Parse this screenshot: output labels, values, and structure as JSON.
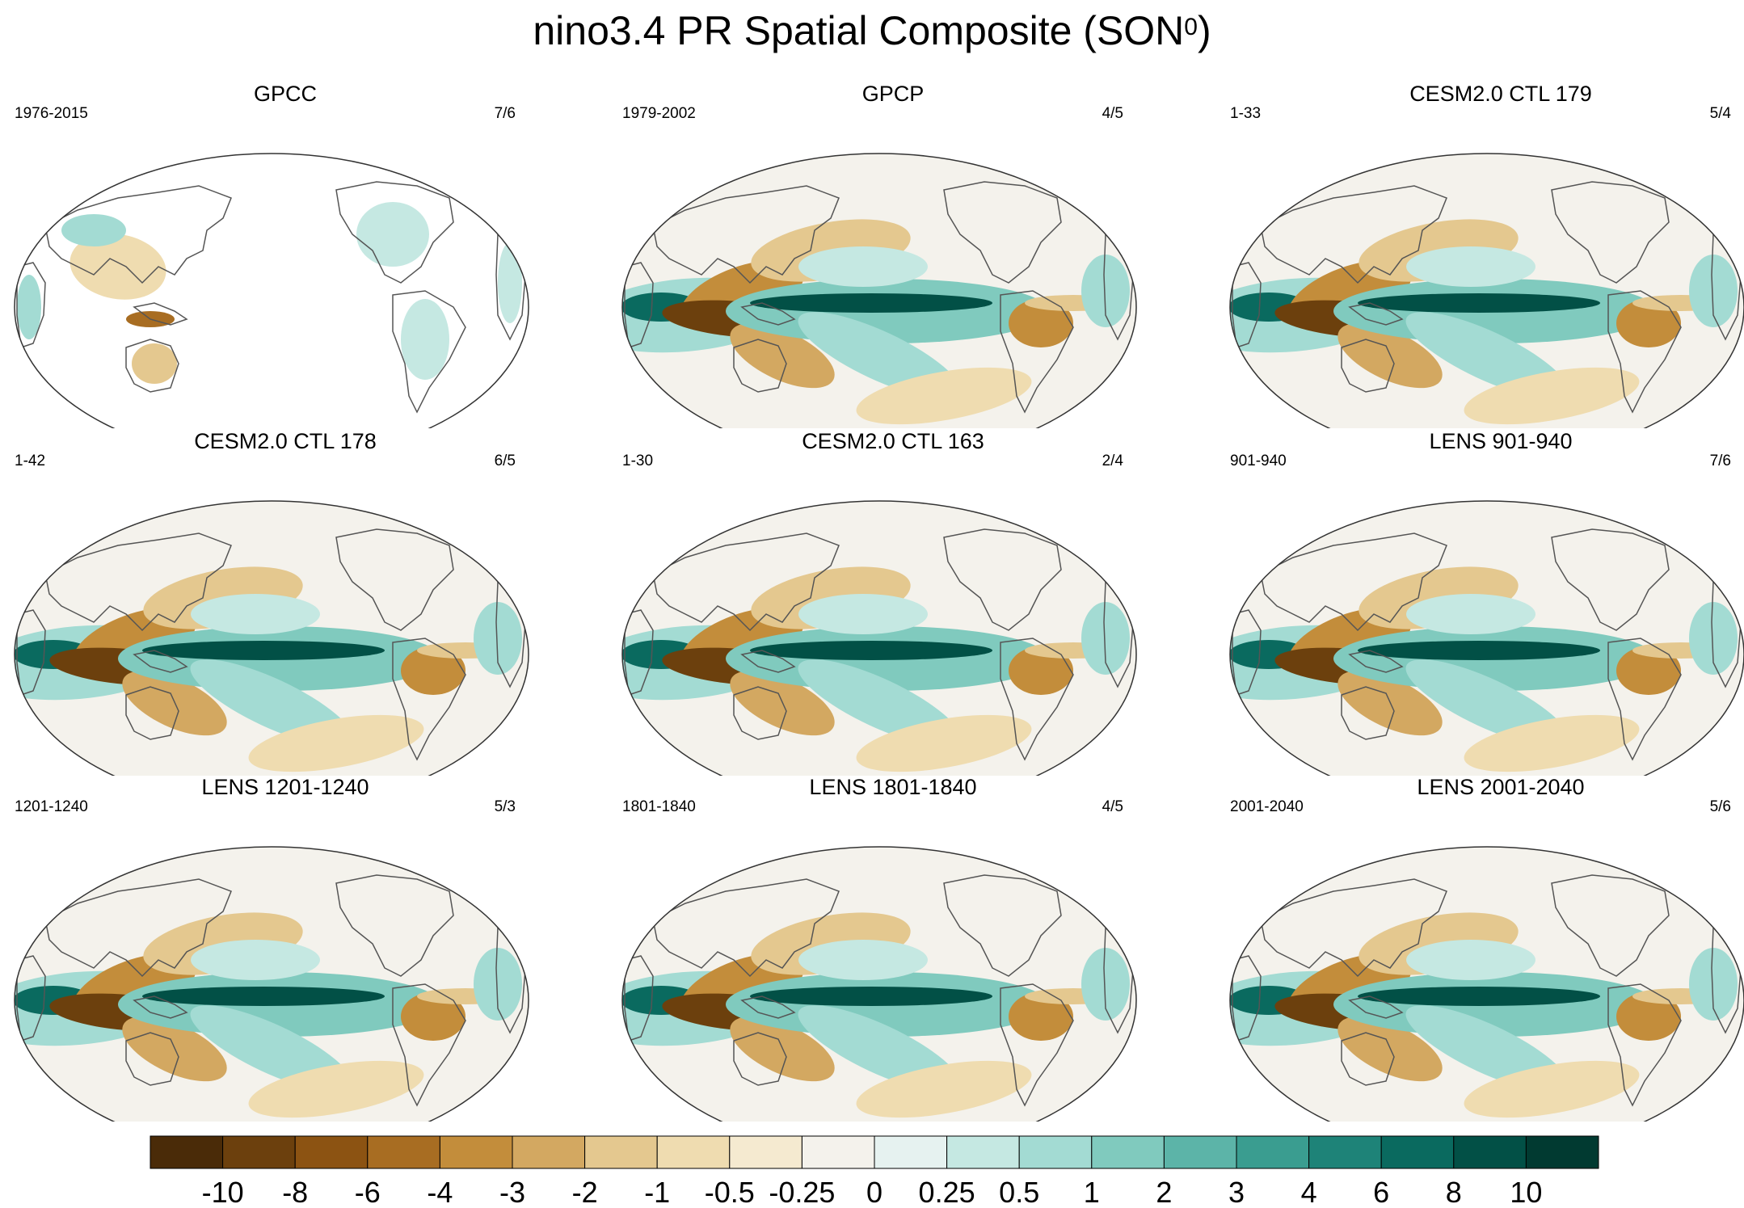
{
  "title": {
    "text": "nino3.4 PR Spatial Composite (SON",
    "sup": "0",
    "close": ")"
  },
  "chart_data": {
    "type": "heatmap",
    "projection": "Robinson (Pacific-centered)",
    "panels": [
      {
        "title": "GPCC",
        "years": "1976-2015",
        "ratio": "7/6",
        "land_only": true
      },
      {
        "title": "GPCP",
        "years": "1979-2002",
        "ratio": "4/5",
        "land_only": false
      },
      {
        "title": "CESM2.0 CTL 179",
        "years": "1-33",
        "ratio": "5/4",
        "land_only": false
      },
      {
        "title": "CESM2.0 CTL 178",
        "years": "1-42",
        "ratio": "6/5",
        "land_only": false
      },
      {
        "title": "CESM2.0 CTL 163",
        "years": "1-30",
        "ratio": "2/4",
        "land_only": false
      },
      {
        "title": "LENS 901-940",
        "years": "901-940",
        "ratio": "7/6",
        "land_only": false
      },
      {
        "title": "LENS 1201-1240",
        "years": "1201-1240",
        "ratio": "5/3",
        "land_only": false
      },
      {
        "title": "LENS 1801-1840",
        "years": "1801-1840",
        "ratio": "4/5",
        "land_only": false
      },
      {
        "title": "LENS 2001-2040",
        "years": "2001-2040",
        "ratio": "5/6",
        "land_only": false
      }
    ],
    "colorbar": {
      "levels": [
        "-10",
        "-8",
        "-6",
        "-4",
        "-3",
        "-2",
        "-1",
        "-0.5",
        "-0.25",
        "0",
        "0.25",
        "0.5",
        "1",
        "2",
        "3",
        "4",
        "6",
        "8",
        "10"
      ],
      "colors": [
        "#4a2b08",
        "#6c400d",
        "#8c5312",
        "#a86d22",
        "#c38d3b",
        "#d3a861",
        "#e4c88f",
        "#efdcb0",
        "#f5ead0",
        "#f4f2ec",
        "#e6f2f0",
        "#c5e8e2",
        "#a3dbd3",
        "#80cabe",
        "#5cb4a8",
        "#3a9d90",
        "#1e8378",
        "#0a6a5f",
        "#025046",
        "#013a31"
      ]
    }
  }
}
